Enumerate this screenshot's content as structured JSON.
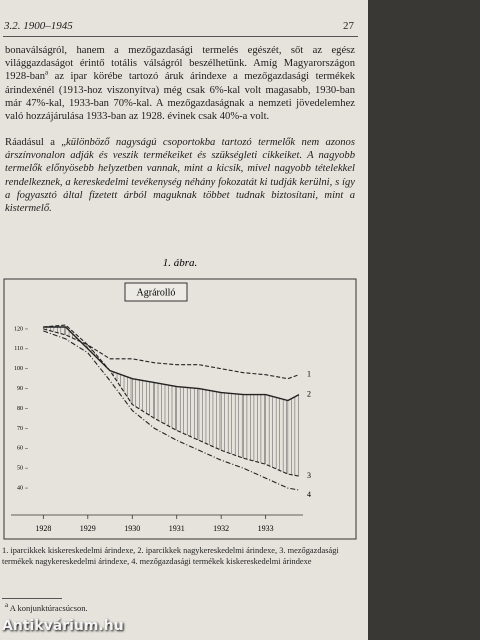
{
  "header": {
    "section": "3.2. 1900–1945",
    "page": "27"
  },
  "paragraphs": [
    {
      "text_before": "bonaválságról, hanem a mezőgazdasági termelés egészét, sőt az egész világgazdaságot érintő totális válságról beszélhetünk. Amíg Magyarországon 1928-ban",
      "footnote_mark": "a",
      "text_after": " az ipar körébe tartozó áruk árindexe a mezőgazdasági termékek árindexénél (1913-hoz viszonyítva) még csak 6%-kal volt magasabb, 1930-ban már 47%-kal, 1933-ban 70%-kal. A mezőgazdaságnak a nemzeti jövedelemhez való hozzájárulása 1933-ban az 1928. évinek csak 40%-a volt."
    },
    {
      "intro": "Ráadásul a „",
      "quote": "különböző nagyságú csoportokba tartozó termelők nem azonos árszínvonalon adják és veszik termékeiket és szükségleti cikkeiket. A nagyobb termelők előnyösebb helyzetben vannak, mint a kicsik, mivel nagyobb tételekkel rendelkeznek, a kereskedelmi tevékenység néhány fokozatát ki tudják kerülni, s így a fogyasztó által fizetett árból maguknak többet tudnak biztosítani, mint a kistermelő."
    }
  ],
  "figure": {
    "label": "1. ábra.",
    "caption": "1. iparcikkek kiskereskedelmi árindexe, 2. iparcikkek nagykereskedelmi árindexe, 3. mezőgazdasági termékek nagykereskedelmi árindexe, 4. mezőgazdasági termékek kiskereskedelmi árindexe"
  },
  "footnote": {
    "mark": "a",
    "text": "A konjunktúracsúcson."
  },
  "watermark": "Antikvárium.hu",
  "chart_data": {
    "type": "line",
    "title": "Agrárolló",
    "x": [
      1928,
      1928.5,
      1929,
      1929.5,
      1930,
      1930.5,
      1931,
      1931.5,
      1932,
      1932.5,
      1933,
      1933.5,
      1933.75
    ],
    "xlim": [
      1927.7,
      1934.2
    ],
    "xticks": [
      1928,
      1929,
      1930,
      1931,
      1932,
      1933
    ],
    "ylim": [
      35,
      125
    ],
    "yticks": [
      40,
      50,
      60,
      70,
      80,
      90,
      100,
      110,
      120
    ],
    "series": [
      {
        "name": "1",
        "color": "#222222",
        "style": "dashed",
        "values": [
          121,
          122,
          112,
          105,
          105,
          103,
          102,
          102,
          100,
          98,
          97,
          95,
          97
        ]
      },
      {
        "name": "2",
        "color": "#222222",
        "style": "solid",
        "values": [
          121,
          121,
          110,
          99,
          95,
          93,
          91,
          90,
          88,
          87,
          87,
          84,
          87
        ]
      },
      {
        "name": "3",
        "color": "#222222",
        "style": "dashed",
        "values": [
          120,
          117,
          112,
          99,
          82,
          75,
          69,
          64,
          59,
          55,
          52,
          47,
          46
        ]
      },
      {
        "name": "4",
        "color": "#222222",
        "style": "dashdot",
        "values": [
          119,
          115,
          108,
          94,
          79,
          70,
          64,
          59,
          54,
          50,
          45,
          40,
          39
        ]
      }
    ]
  }
}
